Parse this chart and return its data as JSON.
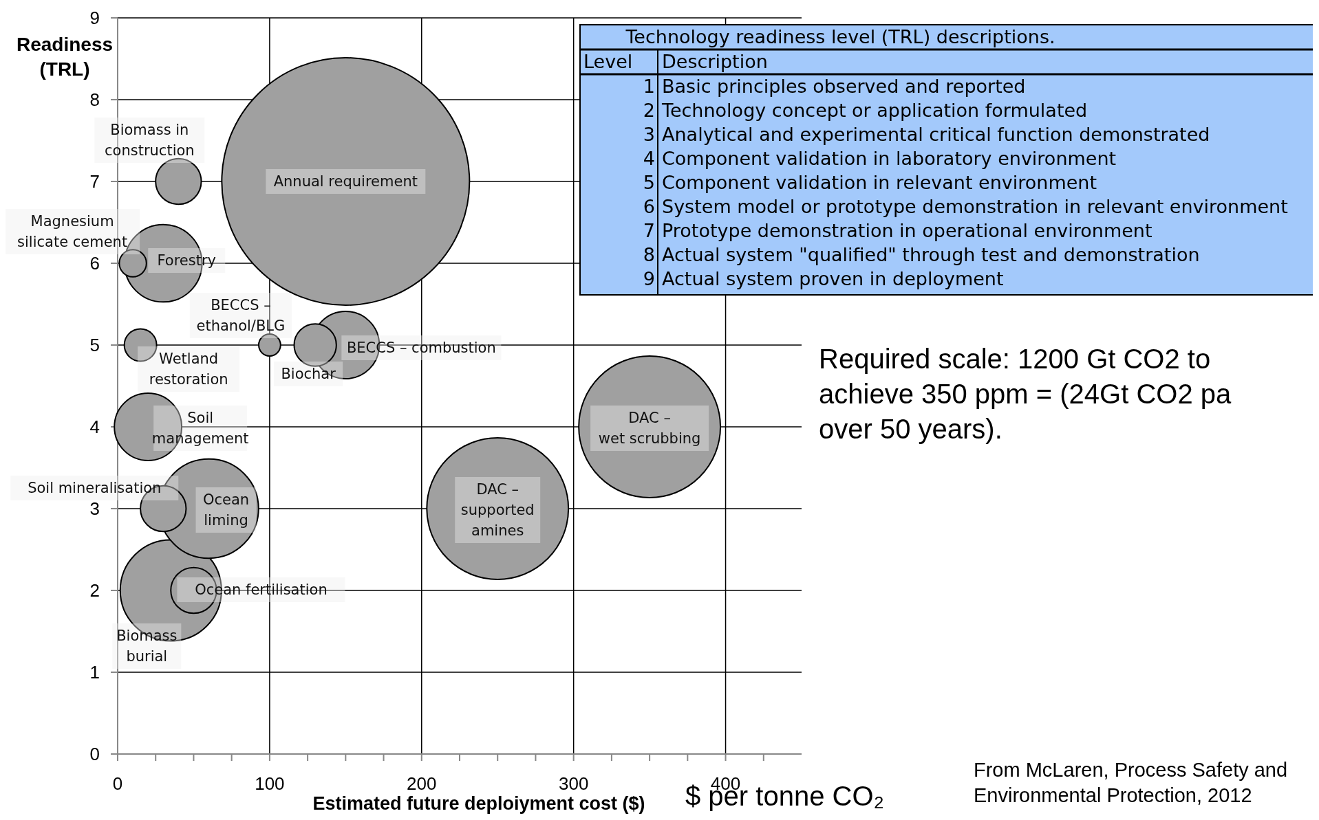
{
  "chart_data": [
    {
      "type": "bubble",
      "xlabel": "Estimated future  deploiyment cost ($)",
      "ylabel": "Readiness (TRL)",
      "x": [
        150,
        40,
        30,
        10,
        100,
        150,
        130,
        15,
        20,
        350,
        250,
        60,
        30,
        35,
        50
      ],
      "series": [
        {
          "color": "#a0a0a0",
          "values": [
            7,
            7,
            6,
            6,
            5,
            5,
            5,
            5,
            4,
            4,
            3,
            3,
            3,
            2,
            2
          ],
          "sizes": [
            1,
            0.034,
            0.098,
            0.012,
            0.0078,
            0.074,
            0.029,
            0.017,
            0.074,
            0.327,
            0.327,
            0.161,
            0.034,
            0.167,
            0.034
          ]
        }
      ],
      "xlim": [
        0,
        450
      ],
      "xticks": [
        0,
        {
          "value": 25,
          "label": null
        },
        {
          "value": 50,
          "label": null
        },
        {
          "value": 75,
          "label": null
        },
        100,
        {
          "value": 125,
          "label": null
        },
        {
          "value": 150,
          "label": null
        },
        {
          "value": 175,
          "label": null
        },
        200,
        {
          "value": 225,
          "label": null
        },
        {
          "value": 250,
          "label": null
        },
        {
          "value": 275,
          "label": null
        },
        300,
        {
          "value": 325,
          "label": null
        },
        {
          "value": 350,
          "label": null
        },
        {
          "value": 375,
          "label": null
        },
        400,
        {
          "value": 425,
          "label": null
        }
      ],
      "ylim": [
        0,
        9
      ],
      "yticks": [
        0,
        1,
        2,
        3,
        4,
        5,
        6,
        7,
        8,
        9
      ],
      "grid": true,
      "annotations": [
        {
          "text": "Annual requirement",
          "x": 150,
          "y": 7
        },
        {
          "text": "Biomass in construction",
          "x": 40,
          "y": 7
        },
        {
          "text": "Forestry",
          "x": 30,
          "y": 6
        },
        {
          "text": "Magnesium silicate cement",
          "x": 10,
          "y": 6
        },
        {
          "text": "BECCS – ethanol/BLG",
          "x": 100,
          "y": 5
        },
        {
          "text": "BECCS – combustion",
          "x": 150,
          "y": 5
        },
        {
          "text": "Biochar",
          "x": 130,
          "y": 5
        },
        {
          "text": "Wetland restoration",
          "x": 15,
          "y": 5
        },
        {
          "text": "Soil management",
          "x": 20,
          "y": 4
        },
        {
          "text": "DAC – wet scrubbing",
          "x": 350,
          "y": 4
        },
        {
          "text": "DAC – supported amines",
          "x": 250,
          "y": 3
        },
        {
          "text": "Ocean liming",
          "x": 60,
          "y": 3
        },
        {
          "text": "Soil mineralisation",
          "x": 30,
          "y": 3
        },
        {
          "text": "Biomass burial",
          "x": 35,
          "y": 2
        },
        {
          "text": "Ocean fertilisation",
          "x": 50,
          "y": 2
        },
        "$ per tonne CO₂",
        "Required scale: 1200 Gt CO2 to achieve 350 ppm = (24Gt CO2 pa over 50 years).",
        "From McLaren, Process Safety and Environmental Protection, 2012"
      ]
    },
    {
      "type": "other",
      "title": "Technology readiness level (TRL) descriptions.",
      "xlabel": "Level",
      "ylabel": "Description",
      "color": "#a3c9fb",
      "data_labels": true,
      "categories": [
        "Basic principles observed and reported",
        "Technology concept or application formulated",
        "Analytical and experimental critical function demonstrated",
        "Component validation in laboratory environment",
        "Component validation in relevant environment",
        "System model or prototype demonstration in relevant environment",
        "Prototype demonstration in operational environment",
        "Actual system \"qualified\" through test and demonstration",
        "Actual system proven in deployment"
      ],
      "values": [
        1,
        2,
        3,
        4,
        5,
        6,
        7,
        8,
        9
      ]
    }
  ]
}
